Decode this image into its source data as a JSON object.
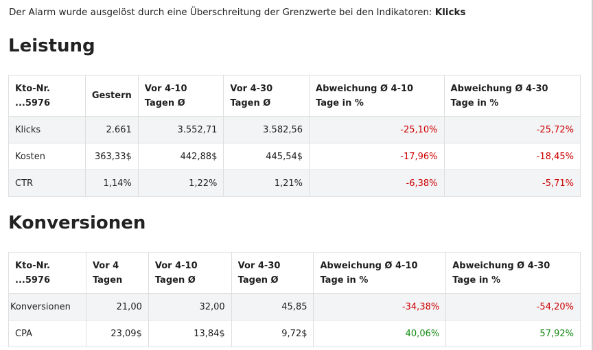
{
  "alert": {
    "text": "Der Alarm wurde ausgelöst durch eine Überschreitung der Grenzwerte bei den Indikatoren:",
    "indicator": "Klicks"
  },
  "performance": {
    "title": "Leistung",
    "headers": [
      "Kto-Nr. ...5976",
      "Gestern",
      "Vor 4-10 Tagen Ø",
      "Vor 4-30 Tagen Ø",
      "Abweichung Ø 4-10 Tage in %",
      "Abweichung Ø 4-30 Tage in %"
    ],
    "rows": [
      {
        "label": "Klicks",
        "v1": "2.661",
        "v2": "3.552,71",
        "v3": "3.582,56",
        "d1": "-25,10%",
        "d2": "-25,72%"
      },
      {
        "label": "Kosten",
        "v1": "363,33$",
        "v2": "442,88$",
        "v3": "445,54$",
        "d1": "-17,96%",
        "d2": "-18,45%"
      },
      {
        "label": "CTR",
        "v1": "1,14%",
        "v2": "1,22%",
        "v3": "1,21%",
        "d1": "-6,38%",
        "d2": "-5,71%"
      }
    ]
  },
  "conversions": {
    "title": "Konversionen",
    "headers": [
      "Kto-Nr. ...5976",
      "Vor 4 Tagen",
      "Vor 4-10 Tagen Ø",
      "Vor 4-30 Tagen Ø",
      "Abweichung Ø 4-10 Tage in %",
      "Abweichung Ø 4-30 Tage in %"
    ],
    "rows": [
      {
        "label": "Konversionen",
        "v1": "21,00",
        "v2": "32,00",
        "v3": "45,85",
        "d1": "-34,38%",
        "d2": "-54,20%"
      },
      {
        "label": "CPA",
        "v1": "23,09$",
        "v2": "13,84$",
        "v3": "9,72$",
        "d1": "40,06%",
        "d2": "57,92%"
      }
    ]
  },
  "colors": {
    "negative": "#cc0000",
    "positive": "#138a13"
  }
}
